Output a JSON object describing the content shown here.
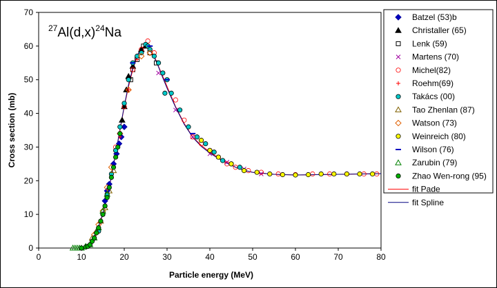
{
  "chart_data": {
    "type": "scatter",
    "title_parts": {
      "mass": "27",
      "target": "Al(d,x)",
      "mass2": "24",
      "product": "Na"
    },
    "xlabel": "Particle energy (MeV)",
    "ylabel": "Cross section (mb)",
    "xlim": [
      0,
      80
    ],
    "ylim": [
      0,
      70
    ],
    "xticks": [
      "0",
      "10",
      "20",
      "30",
      "40",
      "50",
      "60",
      "70",
      "80"
    ],
    "yticks": [
      "0",
      "10",
      "20",
      "30",
      "40",
      "50",
      "60",
      "70"
    ],
    "grid": false,
    "legend_position": "right",
    "series": [
      {
        "name": "Batzel (53)b",
        "marker": "diamond",
        "color": "#0000a0",
        "fill": "#0000c0",
        "points": [
          [
            15.5,
            14
          ],
          [
            16.5,
            19
          ],
          [
            17.5,
            25
          ],
          [
            18.2,
            28
          ],
          [
            18.8,
            31
          ],
          [
            19.3,
            33
          ],
          [
            20,
            36
          ],
          [
            16,
            17
          ]
        ]
      },
      {
        "name": "Christaller (65)",
        "marker": "triangle",
        "color": "#000000",
        "fill": "#000000",
        "points": [
          [
            19.5,
            38
          ],
          [
            20,
            42
          ],
          [
            20.5,
            47
          ],
          [
            21,
            51
          ],
          [
            22,
            54
          ],
          [
            24,
            59
          ],
          [
            25,
            60
          ]
        ]
      },
      {
        "name": "Lenk (59)",
        "marker": "square",
        "color": "#000000",
        "fill": "none",
        "points": [
          [
            21.5,
            50
          ],
          [
            22,
            53
          ],
          [
            23,
            56
          ],
          [
            24.5,
            60
          ],
          [
            26,
            58
          ],
          [
            27.5,
            55
          ]
        ]
      },
      {
        "name": "Martens (70)",
        "marker": "x",
        "color": "#a000a0",
        "fill": "none",
        "points": [
          [
            28,
            52
          ],
          [
            32,
            41
          ],
          [
            36,
            33
          ],
          [
            40,
            28
          ],
          [
            44,
            25.5
          ],
          [
            48,
            23.5
          ],
          [
            52,
            22
          ]
        ]
      },
      {
        "name": "Michel(82)",
        "marker": "circle",
        "color": "#ff0000",
        "fill": "none",
        "points": [
          [
            18,
            30
          ],
          [
            20,
            42
          ],
          [
            22,
            53
          ],
          [
            24,
            59
          ],
          [
            25.5,
            61.5
          ],
          [
            27,
            58
          ],
          [
            29,
            52
          ],
          [
            32,
            44
          ],
          [
            34,
            38
          ],
          [
            36,
            33
          ],
          [
            38,
            31
          ],
          [
            40,
            29
          ],
          [
            42,
            27
          ],
          [
            44,
            25
          ],
          [
            46,
            24
          ],
          [
            49,
            23
          ],
          [
            52,
            22.5
          ],
          [
            56,
            22
          ],
          [
            60,
            21.8
          ],
          [
            64,
            22
          ],
          [
            68,
            22
          ],
          [
            72,
            22
          ],
          [
            76,
            22
          ],
          [
            79,
            22
          ]
        ]
      },
      {
        "name": "Roehm(69)",
        "marker": "plus",
        "color": "#ff0000",
        "fill": "none",
        "points": [
          [
            17,
            22
          ],
          [
            19,
            33
          ],
          [
            21,
            47
          ],
          [
            23,
            56
          ]
        ]
      },
      {
        "name": "Takács (00)",
        "marker": "circle",
        "color": "#000000",
        "fill": "#00c8c8",
        "points": [
          [
            14,
            5
          ],
          [
            15,
            10
          ],
          [
            16,
            16
          ],
          [
            17,
            22
          ],
          [
            18,
            29
          ],
          [
            19,
            36
          ],
          [
            20,
            43
          ],
          [
            21,
            50
          ],
          [
            22,
            55
          ],
          [
            23,
            57
          ],
          [
            24,
            58
          ],
          [
            25,
            60.5
          ],
          [
            25.5,
            60
          ],
          [
            26,
            59
          ],
          [
            27,
            57
          ],
          [
            28,
            55
          ],
          [
            29,
            52
          ],
          [
            29.5,
            46
          ],
          [
            30,
            50
          ],
          [
            31,
            46
          ],
          [
            33,
            41
          ],
          [
            35,
            36
          ],
          [
            37,
            33
          ],
          [
            39,
            31
          ],
          [
            41,
            28.5
          ],
          [
            43,
            26
          ],
          [
            45,
            25
          ],
          [
            47,
            24
          ]
        ]
      },
      {
        "name": "Tao Zhenlan (87)",
        "marker": "triangle",
        "color": "#806000",
        "fill": "none",
        "points": [
          [
            12.5,
            3
          ],
          [
            13.5,
            5
          ],
          [
            14.5,
            8
          ],
          [
            15.5,
            12
          ],
          [
            16.5,
            17
          ],
          [
            17.5,
            23
          ]
        ]
      },
      {
        "name": "Watson (73)",
        "marker": "diamond",
        "color": "#e06000",
        "fill": "none",
        "points": [
          [
            13,
            4
          ],
          [
            14,
            7
          ],
          [
            15,
            11
          ],
          [
            16,
            18
          ],
          [
            17,
            24
          ],
          [
            19,
            34
          ],
          [
            21,
            47
          ],
          [
            24,
            57
          ],
          [
            26,
            58
          ]
        ]
      },
      {
        "name": "Weinreich (80)",
        "marker": "circle",
        "color": "#000000",
        "fill": "#ffff00",
        "points": [
          [
            38,
            32
          ],
          [
            40,
            29
          ],
          [
            42,
            27
          ],
          [
            45,
            25
          ],
          [
            48,
            23
          ],
          [
            51,
            22.5
          ],
          [
            54,
            22
          ],
          [
            57,
            21.8
          ],
          [
            60,
            21.7
          ],
          [
            63,
            21.8
          ],
          [
            66,
            22
          ],
          [
            69,
            22
          ],
          [
            72,
            22
          ],
          [
            75,
            22
          ],
          [
            78,
            22
          ]
        ]
      },
      {
        "name": "Wilson (76)",
        "marker": "dash",
        "color": "#0000c0",
        "fill": "none",
        "points": [
          [
            22,
            55
          ],
          [
            26,
            60
          ],
          [
            30,
            50
          ],
          [
            36,
            34
          ]
        ]
      },
      {
        "name": "Zarubin (79)",
        "marker": "triangle",
        "color": "#008000",
        "fill": "none",
        "points": [
          [
            8,
            0
          ],
          [
            8.5,
            0
          ],
          [
            9,
            0
          ],
          [
            9.5,
            0
          ],
          [
            10,
            0
          ],
          [
            11,
            0.5
          ],
          [
            12,
            1
          ],
          [
            13,
            3
          ],
          [
            14,
            6
          ],
          [
            15,
            11
          ],
          [
            16,
            16
          ]
        ]
      },
      {
        "name": "Zhao Wen-rong (95)",
        "marker": "circle",
        "color": "#000000",
        "fill": "#00b000",
        "points": [
          [
            10,
            0
          ],
          [
            11,
            0.3
          ],
          [
            11.5,
            0.5
          ],
          [
            12,
            1
          ],
          [
            12.5,
            2
          ],
          [
            13,
            3
          ],
          [
            13.5,
            4.5
          ],
          [
            14,
            6
          ],
          [
            14.5,
            8
          ],
          [
            15,
            10
          ],
          [
            15.5,
            12.5
          ],
          [
            16,
            15
          ],
          [
            16.5,
            18
          ],
          [
            17,
            21
          ],
          [
            17.5,
            24
          ],
          [
            18,
            27
          ],
          [
            18.5,
            30
          ],
          [
            19,
            34
          ]
        ]
      },
      {
        "name": "fit Pade",
        "marker": "line",
        "color": "#ff0000",
        "fill": "none",
        "points": [
          [
            11,
            0
          ],
          [
            12,
            1
          ],
          [
            13,
            3
          ],
          [
            14,
            6
          ],
          [
            15,
            10
          ],
          [
            16,
            15
          ],
          [
            17,
            21
          ],
          [
            18,
            28
          ],
          [
            19,
            35
          ],
          [
            20,
            42
          ],
          [
            21,
            48
          ],
          [
            22,
            53
          ],
          [
            23,
            57
          ],
          [
            24,
            59.5
          ],
          [
            25,
            60
          ],
          [
            26,
            59
          ],
          [
            27,
            57
          ],
          [
            28,
            54
          ],
          [
            29,
            51
          ],
          [
            30,
            48
          ],
          [
            32,
            42
          ],
          [
            34,
            37
          ],
          [
            36,
            33
          ],
          [
            38,
            30.5
          ],
          [
            40,
            28.5
          ],
          [
            42,
            26.8
          ],
          [
            44,
            25.3
          ],
          [
            46,
            24
          ],
          [
            48,
            23.1
          ],
          [
            50,
            22.5
          ],
          [
            55,
            21.9
          ],
          [
            60,
            21.7
          ],
          [
            65,
            21.8
          ],
          [
            70,
            21.9
          ],
          [
            75,
            22
          ],
          [
            80,
            22.1
          ]
        ]
      },
      {
        "name": "fit Spline",
        "marker": "line",
        "color": "#000080",
        "fill": "none",
        "points": [
          [
            11,
            0
          ],
          [
            12,
            1
          ],
          [
            13,
            3.2
          ],
          [
            14,
            6.2
          ],
          [
            15,
            10.3
          ],
          [
            16,
            15.2
          ],
          [
            17,
            21.2
          ],
          [
            18,
            28.2
          ],
          [
            19,
            35.2
          ],
          [
            20,
            42.2
          ],
          [
            21,
            48.5
          ],
          [
            22,
            53.5
          ],
          [
            23,
            57.2
          ],
          [
            24,
            59.3
          ],
          [
            25,
            59.8
          ],
          [
            26,
            58.8
          ],
          [
            27,
            56.7
          ],
          [
            28,
            53.8
          ],
          [
            29,
            50.6
          ],
          [
            30,
            47.5
          ],
          [
            32,
            41.8
          ],
          [
            34,
            36.8
          ],
          [
            36,
            32.9
          ],
          [
            38,
            30.2
          ],
          [
            40,
            28.2
          ],
          [
            42,
            26.6
          ],
          [
            44,
            25.2
          ],
          [
            46,
            24
          ],
          [
            48,
            23.1
          ],
          [
            50,
            22.5
          ],
          [
            55,
            21.9
          ],
          [
            60,
            21.7
          ],
          [
            65,
            21.8
          ],
          [
            70,
            21.9
          ],
          [
            75,
            22
          ],
          [
            80,
            22.1
          ]
        ]
      }
    ]
  }
}
